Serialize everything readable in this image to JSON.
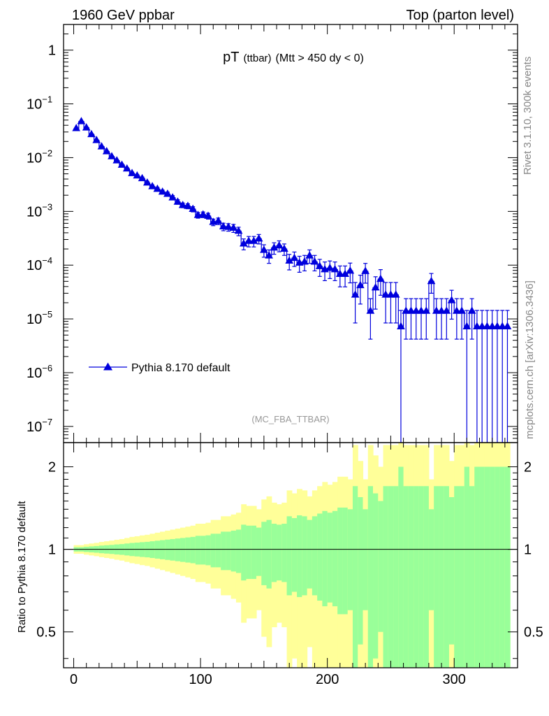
{
  "header": {
    "left": "1960 GeV ppbar",
    "right": "Top (parton level)"
  },
  "title": {
    "main": "pT",
    "sub1": "(ttbar)",
    "sub2": "(Mtt > 450 dy < 0)"
  },
  "side_labels": {
    "rivet": "Rivet 3.1.10,  300k events",
    "mcplots": "mcplots.cern.ch [arXiv:1306.3436]"
  },
  "watermark": "(MC_FBA_TTBAR)",
  "legend": {
    "label": "Pythia 8.170 default"
  },
  "ratio_ylabel": "Ratio to Pythia 8.170 default",
  "colors": {
    "series": "#0000dd",
    "band_inner": "#99ff99",
    "band_outer": "#ffff99"
  },
  "chart_data": [
    {
      "type": "scatter",
      "log_y": true,
      "xlim": [
        -8,
        350
      ],
      "ylim": [
        5e-08,
        3
      ],
      "y_ticks": [
        {
          "value": 1,
          "label": "1"
        },
        {
          "value": 0.1,
          "label": "10",
          "exp": "−1"
        },
        {
          "value": 0.01,
          "label": "10",
          "exp": "−2"
        },
        {
          "value": 0.001,
          "label": "10",
          "exp": "−3"
        },
        {
          "value": 0.0001,
          "label": "10",
          "exp": "−4"
        },
        {
          "value": 1e-05,
          "label": "10",
          "exp": "−5"
        },
        {
          "value": 1e-06,
          "label": "10",
          "exp": "−6"
        },
        {
          "value": 1e-07,
          "label": "10",
          "exp": "−7"
        }
      ],
      "series": [
        {
          "name": "Pythia 8.170 default",
          "x": [
            2,
            6,
            10,
            14,
            18,
            22,
            26,
            30,
            34,
            38,
            42,
            46,
            50,
            54,
            58,
            62,
            66,
            70,
            74,
            78,
            82,
            86,
            90,
            94,
            98,
            102,
            106,
            110,
            114,
            118,
            122,
            126,
            130,
            134,
            138,
            142,
            146,
            150,
            154,
            158,
            162,
            166,
            170,
            174,
            178,
            182,
            186,
            190,
            194,
            198,
            202,
            206,
            210,
            214,
            218,
            222,
            226,
            230,
            234,
            238,
            242,
            246,
            250,
            254,
            258,
            262,
            266,
            270,
            274,
            278,
            282,
            286,
            290,
            294,
            298,
            302,
            306,
            310,
            314,
            318,
            322,
            326,
            330,
            334,
            338,
            342
          ],
          "y": [
            0.035,
            0.047,
            0.036,
            0.027,
            0.021,
            0.016,
            0.013,
            0.0105,
            0.0088,
            0.0073,
            0.0062,
            0.0051,
            0.0046,
            0.0041,
            0.0034,
            0.0029,
            0.0026,
            0.0023,
            0.0021,
            0.0018,
            0.0015,
            0.0013,
            0.00125,
            0.0011,
            0.00085,
            0.00087,
            0.00082,
            0.00063,
            0.00066,
            0.00052,
            0.00051,
            0.00049,
            0.00043,
            0.00025,
            0.00028,
            0.00028,
            0.00031,
            0.00019,
            0.00015,
            0.00021,
            0.00023,
            0.0002,
            0.00012,
            0.000135,
            0.00011,
            0.000115,
            0.00015,
            0.000115,
            9.5e-05,
            8.3e-05,
            8.8e-05,
            8.3e-05,
            6.8e-05,
            6.8e-05,
            7.8e-05,
            2.8e-05,
            4.2e-05,
            7.7e-05,
            1.4e-05,
            3.8e-05,
            5.5e-05,
            2.8e-05,
            2.8e-05,
            2.8e-05,
            7.2e-06,
            1.4e-05,
            1.4e-05,
            1.4e-05,
            1.4e-05,
            1.4e-05,
            5e-05,
            1.4e-05,
            1.4e-05,
            1.4e-05,
            2.2e-05,
            1.4e-05,
            1.4e-05,
            7.2e-06,
            1.4e-05,
            7.2e-06,
            7.2e-06,
            7.2e-06,
            7.2e-06,
            7.2e-06,
            7.2e-06,
            7.2e-06
          ],
          "rel_err": [
            0.018,
            0.018,
            0.022,
            0.025,
            0.028,
            0.032,
            0.035,
            0.038,
            0.042,
            0.045,
            0.05,
            0.055,
            0.058,
            0.062,
            0.065,
            0.07,
            0.075,
            0.08,
            0.085,
            0.09,
            0.095,
            0.1,
            0.105,
            0.11,
            0.12,
            0.12,
            0.125,
            0.14,
            0.14,
            0.16,
            0.16,
            0.17,
            0.18,
            0.23,
            0.22,
            0.22,
            0.2,
            0.26,
            0.28,
            0.24,
            0.23,
            0.24,
            0.32,
            0.3,
            0.33,
            0.32,
            0.28,
            0.32,
            0.35,
            0.38,
            0.36,
            0.38,
            0.42,
            0.42,
            0.4,
            0.7,
            0.55,
            0.4,
            0.7,
            0.6,
            0.5,
            0.7,
            0.7,
            0.7,
            1.0,
            0.7,
            0.7,
            0.7,
            0.7,
            0.7,
            0.4,
            0.7,
            0.7,
            0.7,
            0.55,
            0.7,
            0.7,
            1.0,
            0.7,
            1.0,
            1.0,
            1.0,
            1.0,
            1.0,
            1.0,
            1.0
          ]
        }
      ]
    },
    {
      "type": "area",
      "log_y": true,
      "xlim": [
        -8,
        350
      ],
      "ylim": [
        0.37,
        2.45
      ],
      "x_ticks": [
        0,
        100,
        200,
        300
      ],
      "y_ticks": [
        {
          "value": 0.5,
          "label": "0.5"
        },
        {
          "value": 1,
          "label": "1"
        },
        {
          "value": 2,
          "label": "2"
        }
      ],
      "reference_line": 1
    }
  ]
}
